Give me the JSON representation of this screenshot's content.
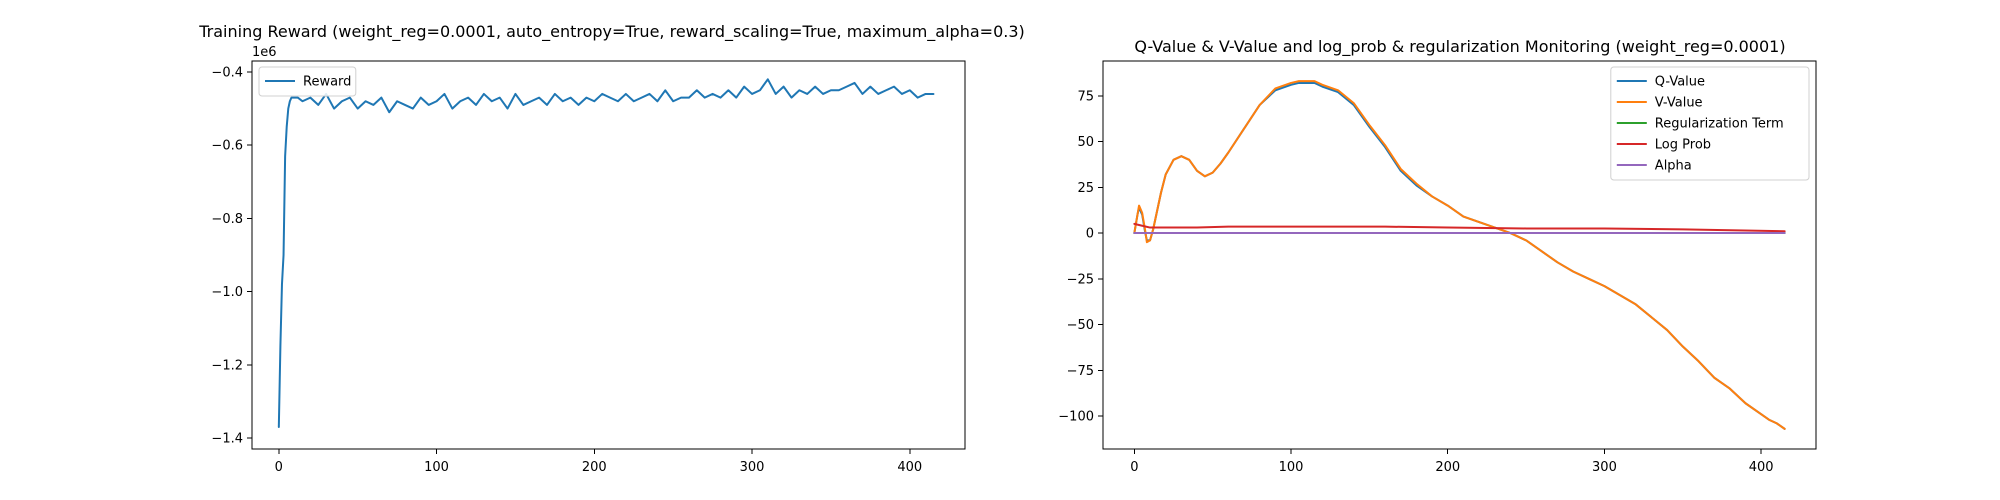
{
  "chart_data": [
    {
      "type": "line",
      "title": "Training Reward (weight_reg=0.0001, auto_entropy=True, reward_scaling=True, maximum_alpha=0.3)",
      "xlabel": "",
      "ylabel": "",
      "y_scale_label": "1e6",
      "xlim": [
        -17,
        435
      ],
      "ylim": [
        -1.43,
        -0.37
      ],
      "xticks": [
        0,
        100,
        200,
        300,
        400
      ],
      "yticks": [
        -0.4,
        -0.6,
        -0.8,
        -1.0,
        -1.2,
        -1.4
      ],
      "ytick_labels": [
        "−0.4",
        "−0.6",
        "−0.8",
        "−1.0",
        "−1.2",
        "−1.4"
      ],
      "legend_position": "upper-left",
      "series": [
        {
          "name": "Reward",
          "color": "#1f77b4",
          "x": [
            0,
            1,
            2,
            3,
            4,
            5,
            6,
            7,
            8,
            10,
            12,
            15,
            20,
            25,
            30,
            35,
            40,
            45,
            50,
            55,
            60,
            65,
            70,
            75,
            80,
            85,
            90,
            95,
            100,
            105,
            110,
            115,
            120,
            125,
            130,
            135,
            140,
            145,
            150,
            155,
            160,
            165,
            170,
            175,
            180,
            185,
            190,
            195,
            200,
            205,
            210,
            215,
            220,
            225,
            230,
            235,
            240,
            245,
            250,
            255,
            260,
            265,
            270,
            275,
            280,
            285,
            290,
            295,
            300,
            305,
            310,
            315,
            320,
            325,
            330,
            335,
            340,
            345,
            350,
            355,
            360,
            365,
            370,
            375,
            380,
            385,
            390,
            395,
            400,
            405,
            410,
            415
          ],
          "y": [
            -1.37,
            -1.15,
            -0.98,
            -0.9,
            -0.63,
            -0.55,
            -0.5,
            -0.48,
            -0.47,
            -0.47,
            -0.47,
            -0.48,
            -0.47,
            -0.49,
            -0.46,
            -0.5,
            -0.48,
            -0.47,
            -0.5,
            -0.48,
            -0.49,
            -0.47,
            -0.51,
            -0.48,
            -0.49,
            -0.5,
            -0.47,
            -0.49,
            -0.48,
            -0.46,
            -0.5,
            -0.48,
            -0.47,
            -0.49,
            -0.46,
            -0.48,
            -0.47,
            -0.5,
            -0.46,
            -0.49,
            -0.48,
            -0.47,
            -0.49,
            -0.46,
            -0.48,
            -0.47,
            -0.49,
            -0.47,
            -0.48,
            -0.46,
            -0.47,
            -0.48,
            -0.46,
            -0.48,
            -0.47,
            -0.46,
            -0.48,
            -0.45,
            -0.48,
            -0.47,
            -0.47,
            -0.45,
            -0.47,
            -0.46,
            -0.47,
            -0.45,
            -0.47,
            -0.44,
            -0.46,
            -0.45,
            -0.42,
            -0.46,
            -0.44,
            -0.47,
            -0.45,
            -0.46,
            -0.44,
            -0.46,
            -0.45,
            -0.45,
            -0.44,
            -0.43,
            -0.46,
            -0.44,
            -0.46,
            -0.45,
            -0.44,
            -0.46,
            -0.45,
            -0.47,
            -0.46,
            -0.46
          ]
        }
      ]
    },
    {
      "type": "line",
      "title": "Q-Value & V-Value and log_prob & regularization Monitoring (weight_reg=0.0001)",
      "xlabel": "",
      "ylabel": "",
      "xlim": [
        -20,
        435
      ],
      "ylim": [
        -118,
        94
      ],
      "xticks": [
        0,
        100,
        200,
        300,
        400
      ],
      "yticks": [
        75,
        50,
        25,
        0,
        -25,
        -50,
        -75,
        -100
      ],
      "ytick_labels": [
        "75",
        "50",
        "25",
        "0",
        "−25",
        "−50",
        "−75",
        "−100"
      ],
      "legend_position": "upper-right",
      "series": [
        {
          "name": "Q-Value",
          "color": "#1f77b4",
          "x": [
            0,
            2,
            3,
            5,
            7,
            8,
            10,
            12,
            14,
            17,
            20,
            25,
            30,
            35,
            40,
            45,
            50,
            55,
            60,
            70,
            80,
            90,
            100,
            105,
            110,
            115,
            120,
            130,
            140,
            150,
            160,
            170,
            180,
            190,
            200,
            210,
            220,
            230,
            240,
            250,
            260,
            270,
            280,
            290,
            300,
            310,
            320,
            330,
            340,
            350,
            360,
            370,
            380,
            390,
            400,
            405,
            410,
            415
          ],
          "y": [
            0,
            10,
            14,
            10,
            0,
            -4,
            -4,
            2,
            10,
            22,
            32,
            40,
            42,
            40,
            34,
            31,
            33,
            38,
            44,
            57,
            70,
            78,
            81,
            82,
            82,
            82,
            80,
            77,
            70,
            58,
            47,
            34,
            26,
            20,
            15,
            9,
            6,
            3,
            0,
            -4,
            -10,
            -16,
            -21,
            -25,
            -29,
            -34,
            -39,
            -46,
            -53,
            -62,
            -70,
            -79,
            -85,
            -93,
            -99,
            -102,
            -104,
            -107
          ]
        },
        {
          "name": "V-Value",
          "color": "#ff7f0e",
          "x": [
            0,
            2,
            3,
            5,
            7,
            8,
            10,
            12,
            14,
            17,
            20,
            25,
            30,
            35,
            40,
            45,
            50,
            55,
            60,
            70,
            80,
            90,
            100,
            105,
            110,
            115,
            120,
            130,
            140,
            150,
            160,
            170,
            180,
            190,
            200,
            210,
            220,
            230,
            240,
            250,
            260,
            270,
            280,
            290,
            300,
            310,
            320,
            330,
            340,
            350,
            360,
            370,
            380,
            390,
            400,
            405,
            410,
            415
          ],
          "y": [
            0,
            10,
            15,
            11,
            1,
            -5,
            -4,
            2,
            10,
            22,
            32,
            40,
            42,
            40,
            34,
            31,
            33,
            38,
            44,
            57,
            70,
            79,
            82,
            83,
            83,
            83,
            81,
            78,
            71,
            59,
            48,
            35,
            27,
            20,
            15,
            9,
            6,
            3,
            0,
            -4,
            -10,
            -16,
            -21,
            -25,
            -29,
            -34,
            -39,
            -46,
            -53,
            -62,
            -70,
            -79,
            -85,
            -93,
            -99,
            -102,
            -104,
            -107
          ]
        },
        {
          "name": "Regularization Term",
          "color": "#2ca02c",
          "x": [
            0,
            100,
            200,
            300,
            415
          ],
          "y": [
            0,
            0,
            0,
            0,
            0
          ]
        },
        {
          "name": "Log Prob",
          "color": "#d62728",
          "x": [
            0,
            5,
            10,
            20,
            40,
            60,
            80,
            100,
            130,
            160,
            200,
            250,
            300,
            350,
            415
          ],
          "y": [
            5,
            4,
            3,
            3,
            3,
            3.5,
            3.5,
            3.5,
            3.5,
            3.5,
            3,
            2.5,
            2.5,
            2,
            1
          ]
        },
        {
          "name": "Alpha",
          "color": "#9467bd",
          "x": [
            0,
            100,
            200,
            300,
            415
          ],
          "y": [
            0,
            0,
            0,
            0,
            0
          ]
        }
      ]
    }
  ]
}
